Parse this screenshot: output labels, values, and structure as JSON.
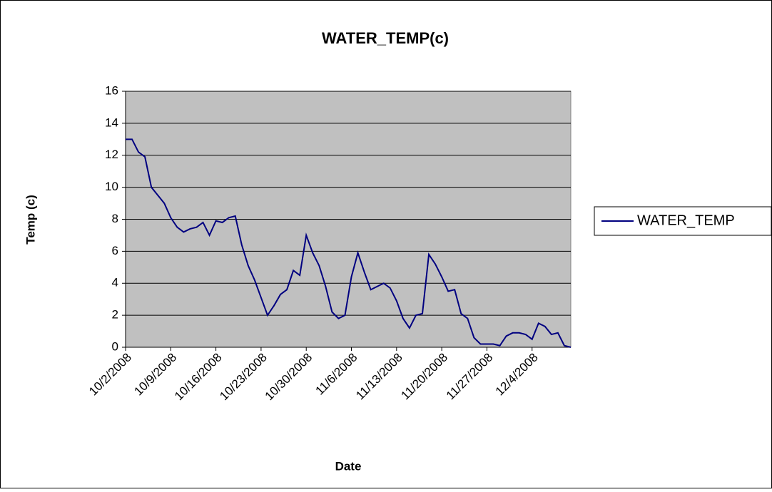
{
  "chart_data": {
    "type": "line",
    "title": "WATER_TEMP(c)",
    "xlabel": "Date",
    "ylabel": "Temp (c)",
    "x": [
      "10/2/2008",
      "10/3/2008",
      "10/4/2008",
      "10/5/2008",
      "10/6/2008",
      "10/7/2008",
      "10/8/2008",
      "10/9/2008",
      "10/10/2008",
      "10/11/2008",
      "10/12/2008",
      "10/13/2008",
      "10/14/2008",
      "10/15/2008",
      "10/16/2008",
      "10/17/2008",
      "10/18/2008",
      "10/19/2008",
      "10/20/2008",
      "10/21/2008",
      "10/22/2008",
      "10/23/2008",
      "10/24/2008",
      "10/25/2008",
      "10/26/2008",
      "10/27/2008",
      "10/28/2008",
      "10/29/2008",
      "10/30/2008",
      "10/31/2008",
      "11/1/2008",
      "11/2/2008",
      "11/3/2008",
      "11/4/2008",
      "11/5/2008",
      "11/6/2008",
      "11/7/2008",
      "11/8/2008",
      "11/9/2008",
      "11/10/2008",
      "11/11/2008",
      "11/12/2008",
      "11/13/2008",
      "11/14/2008",
      "11/15/2008",
      "11/16/2008",
      "11/17/2008",
      "11/18/2008",
      "11/19/2008",
      "11/20/2008",
      "11/21/2008",
      "11/22/2008",
      "11/23/2008",
      "11/24/2008",
      "11/25/2008",
      "11/26/2008",
      "11/27/2008",
      "11/28/2008",
      "11/29/2008",
      "11/30/2008",
      "12/1/2008",
      "12/2/2008",
      "12/3/2008",
      "12/4/2008",
      "12/5/2008",
      "12/6/2008",
      "12/7/2008",
      "12/8/2008",
      "12/9/2008",
      "12/10/2008"
    ],
    "series": [
      {
        "name": "WATER_TEMP",
        "color": "#000080",
        "values": [
          13,
          13,
          12.2,
          11.9,
          10,
          9.5,
          9,
          8.1,
          7.5,
          7.2,
          7.4,
          7.5,
          7.8,
          7.0,
          7.9,
          7.8,
          8.1,
          8.2,
          6.4,
          5.1,
          4.2,
          3.1,
          2.0,
          2.6,
          3.3,
          3.6,
          4.8,
          4.5,
          7.0,
          5.9,
          5.1,
          3.8,
          2.2,
          1.8,
          2.0,
          4.4,
          5.9,
          4.7,
          3.6,
          3.8,
          4.0,
          3.7,
          2.9,
          1.8,
          1.2,
          2.0,
          2.1,
          5.8,
          5.2,
          4.4,
          3.5,
          3.6,
          2.1,
          1.8,
          0.6,
          0.2,
          0.2,
          0.2,
          0.1,
          0.7,
          0.9,
          0.9,
          0.8,
          0.5,
          1.5,
          1.3,
          0.8,
          0.9,
          0.1,
          0
        ]
      }
    ],
    "xlim": [
      "10/2/2008",
      "12/10/2008"
    ],
    "xticks": [
      "10/2/2008",
      "10/9/2008",
      "10/16/2008",
      "10/23/2008",
      "10/30/2008",
      "11/6/2008",
      "11/13/2008",
      "11/20/2008",
      "11/27/2008",
      "12/4/2008"
    ],
    "ylim": [
      0,
      16
    ],
    "yticks": [
      0,
      2,
      4,
      6,
      8,
      10,
      12,
      14,
      16
    ],
    "grid": true,
    "legend": "right"
  }
}
